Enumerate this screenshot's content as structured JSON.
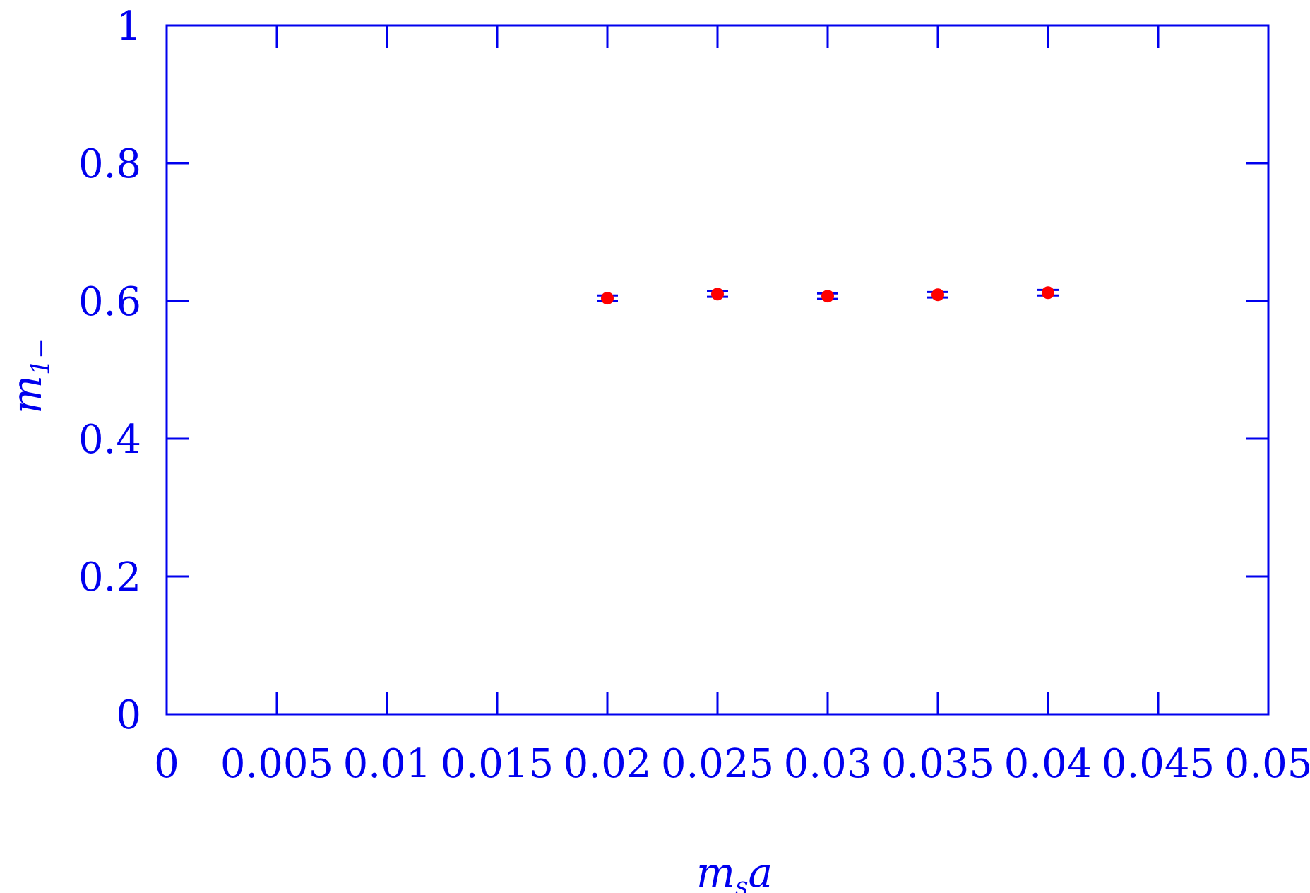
{
  "chart_data": {
    "type": "scatter",
    "title": "",
    "xlabel": {
      "main": "m",
      "sub": "s",
      "rest": "a"
    },
    "ylabel": {
      "main": "m",
      "sub": "1−"
    },
    "xlim": [
      0,
      0.05
    ],
    "ylim": [
      0,
      1
    ],
    "x_ticks": [
      0,
      0.005,
      0.01,
      0.015,
      0.02,
      0.025,
      0.03,
      0.035,
      0.04,
      0.045,
      0.05
    ],
    "x_tick_labels": [
      "0",
      "0.005",
      "0.01",
      "0.015",
      "0.02",
      "0.025",
      "0.03",
      "0.035",
      "0.04",
      "0.045",
      "0.05"
    ],
    "y_ticks": [
      0,
      0.2,
      0.4,
      0.6,
      0.8,
      1
    ],
    "y_tick_labels": [
      "0",
      "0.2",
      "0.4",
      "0.6",
      "0.8",
      "1"
    ],
    "grid": false,
    "series": [
      {
        "points": [
          {
            "x": 0.02,
            "y": 0.604,
            "err": 0.004
          },
          {
            "x": 0.025,
            "y": 0.61,
            "err": 0.004
          },
          {
            "x": 0.03,
            "y": 0.607,
            "err": 0.004
          },
          {
            "x": 0.035,
            "y": 0.609,
            "err": 0.004
          },
          {
            "x": 0.04,
            "y": 0.612,
            "err": 0.004
          }
        ]
      }
    ],
    "colors": {
      "axis": "#0000ee",
      "marker": "#ff0000",
      "errorbar": "#0000ee"
    }
  }
}
